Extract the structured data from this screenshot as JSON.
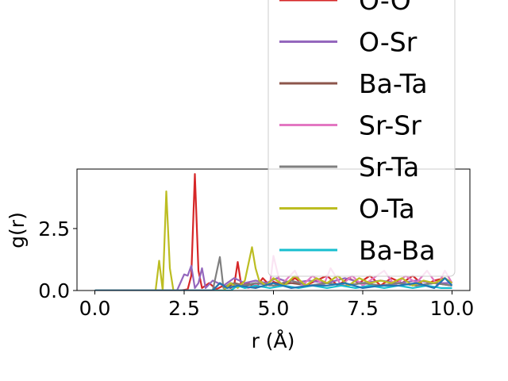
{
  "chart_data": {
    "type": "line",
    "xlabel": "r (Å)",
    "ylabel": "g(r)",
    "xlim": [
      -0.5,
      10.5
    ],
    "ylim": [
      0,
      4.9
    ],
    "xticks": [
      0.0,
      2.5,
      5.0,
      7.5,
      10.0
    ],
    "xtick_labels": [
      "0.0",
      "2.5",
      "5.0",
      "7.5",
      "10.0"
    ],
    "yticks": [
      0.0,
      2.5
    ],
    "ytick_labels": [
      "0.0",
      "2.5"
    ],
    "grid": false,
    "legend_placement": "upper-right (overflowing top of figure)",
    "series": [
      {
        "name": "O-O",
        "color": "#d62728",
        "x": [
          0,
          2.4,
          2.6,
          2.7,
          2.8,
          2.9,
          3.0,
          3.2,
          3.4,
          3.6,
          3.8,
          3.9,
          4.0,
          4.1,
          4.3,
          4.5,
          4.7,
          4.9,
          5.0,
          5.3,
          5.6,
          5.9,
          6.2,
          6.5,
          6.8,
          7.1,
          7.4,
          7.7,
          8.0,
          8.3,
          8.6,
          8.9,
          9.2,
          9.5,
          9.8,
          10.0
        ],
        "y": [
          0,
          0,
          0.05,
          0.6,
          4.7,
          0.8,
          0.1,
          0.3,
          0.05,
          0.2,
          0.1,
          0.2,
          1.15,
          0.2,
          0.3,
          0.1,
          0.5,
          0.2,
          0.35,
          0.2,
          0.5,
          0.2,
          0.4,
          0.6,
          0.2,
          0.5,
          0.3,
          0.6,
          0.2,
          0.5,
          0.3,
          0.6,
          0.2,
          0.4,
          0.5,
          0.3
        ]
      },
      {
        "name": "O-Sr",
        "color": "#9467bd",
        "x": [
          0,
          2.3,
          2.5,
          2.6,
          2.7,
          2.8,
          2.9,
          3.0,
          3.1,
          3.3,
          3.6,
          3.9,
          4.2,
          4.5,
          4.8,
          5.1,
          5.5,
          6.0,
          6.5,
          7.0,
          7.5,
          8.0,
          8.5,
          9.0,
          9.5,
          10.0
        ],
        "y": [
          0,
          0,
          0.65,
          0.6,
          1.0,
          0.1,
          0.3,
          0.9,
          0.1,
          0.4,
          0.2,
          0.5,
          0.3,
          0.4,
          0.3,
          0.5,
          0.3,
          0.4,
          0.3,
          0.5,
          0.3,
          0.4,
          0.3,
          0.4,
          0.3,
          0.3
        ]
      },
      {
        "name": "Ba-Ta",
        "color": "#8c564b",
        "x": [
          0,
          3.3,
          3.5,
          3.7,
          3.9,
          4.2,
          4.6,
          5.0,
          5.5,
          6.0,
          6.5,
          7.0,
          7.5,
          8.0,
          8.5,
          9.0,
          9.5,
          10.0
        ],
        "y": [
          0,
          0,
          0.3,
          0.1,
          0.3,
          0.2,
          0.3,
          0.2,
          0.3,
          0.2,
          0.3,
          0.2,
          0.3,
          0.2,
          0.3,
          0.2,
          0.3,
          0.2
        ]
      },
      {
        "name": "Sr-Sr",
        "color": "#e377c2",
        "x": [
          0,
          3.8,
          4.0,
          4.3,
          4.6,
          4.9,
          5.0,
          5.2,
          5.6,
          5.8,
          6.1,
          6.4,
          6.6,
          6.9,
          7.2,
          7.5,
          7.8,
          8.1,
          8.4,
          8.7,
          9.0,
          9.3,
          9.6,
          9.8,
          10.0
        ],
        "y": [
          0,
          0,
          0.2,
          0.1,
          0.3,
          0.2,
          1.4,
          0.2,
          0.8,
          0.2,
          0.6,
          0.2,
          0.9,
          0.2,
          0.6,
          0.2,
          0.5,
          0.8,
          0.2,
          0.6,
          0.3,
          0.8,
          0.2,
          0.8,
          0.3
        ]
      },
      {
        "name": "Sr-Ta",
        "color": "#7f7f7f",
        "x": [
          0,
          3.3,
          3.5,
          3.6,
          3.8,
          4.1,
          4.5,
          5.0,
          5.5,
          6.0,
          6.5,
          7.0,
          7.5,
          8.0,
          8.5,
          9.0,
          9.5,
          10.0
        ],
        "y": [
          0,
          0,
          1.35,
          0.1,
          0.3,
          0.2,
          0.3,
          0.2,
          0.4,
          0.2,
          0.3,
          0.2,
          0.3,
          0.2,
          0.3,
          0.2,
          0.3,
          0.2
        ]
      },
      {
        "name": "O-Ta",
        "color": "#bcbd22",
        "x": [
          0,
          1.7,
          1.8,
          1.9,
          2.0,
          2.1,
          2.2,
          3.6,
          3.8,
          4.0,
          4.2,
          4.4,
          4.5,
          4.6,
          4.8,
          5.0,
          5.3,
          5.6,
          5.9,
          6.2,
          6.5,
          6.8,
          7.1,
          7.4,
          7.7,
          8.0,
          8.3,
          8.6,
          8.9,
          9.2,
          9.5,
          9.8,
          10.0
        ],
        "y": [
          0,
          0,
          1.2,
          0,
          4.0,
          0.9,
          0,
          0,
          0.3,
          0.1,
          0.4,
          1.75,
          0.9,
          0.4,
          0.2,
          0.5,
          0.2,
          0.6,
          0.2,
          0.5,
          0.3,
          0.6,
          0.2,
          0.5,
          0.3,
          0.4,
          0.3,
          0.5,
          0.2,
          0.4,
          0.3,
          0.5,
          0.3
        ]
      },
      {
        "name": "Ba-Ba",
        "color": "#17becf",
        "x": [
          0,
          3.8,
          4.0,
          4.2,
          4.5,
          4.9,
          5.3,
          5.7,
          6.1,
          6.5,
          6.9,
          7.3,
          7.7,
          8.1,
          8.5,
          8.9,
          9.3,
          9.7,
          10.0
        ],
        "y": [
          0,
          0,
          0.2,
          0.1,
          0.2,
          0.1,
          0.2,
          0.1,
          0.2,
          0.1,
          0.2,
          0.1,
          0.2,
          0.1,
          0.2,
          0.1,
          0.2,
          0.1,
          0.1
        ]
      },
      {
        "name": "",
        "color": "#1f77b4",
        "x": [
          0,
          3.3,
          3.5,
          3.7,
          4.0,
          4.5,
          5.0,
          5.5,
          6.0,
          6.5,
          7.0,
          7.5,
          8.0,
          8.5,
          9.0,
          9.5,
          9.8,
          10.0
        ],
        "y": [
          0,
          0,
          0.3,
          0.1,
          0.2,
          0.1,
          0.3,
          0.1,
          0.2,
          0.2,
          0.3,
          0.1,
          0.2,
          0.2,
          0.3,
          0.1,
          0.5,
          0.2
        ]
      }
    ],
    "legend": [
      {
        "label": "O-O",
        "color": "#d62728"
      },
      {
        "label": "O-Sr",
        "color": "#9467bd"
      },
      {
        "label": "Ba-Ta",
        "color": "#8c564b"
      },
      {
        "label": "Sr-Sr",
        "color": "#e377c2"
      },
      {
        "label": "Sr-Ta",
        "color": "#7f7f7f"
      },
      {
        "label": "O-Ta",
        "color": "#bcbd22"
      },
      {
        "label": "Ba-Ba",
        "color": "#17becf"
      }
    ]
  }
}
